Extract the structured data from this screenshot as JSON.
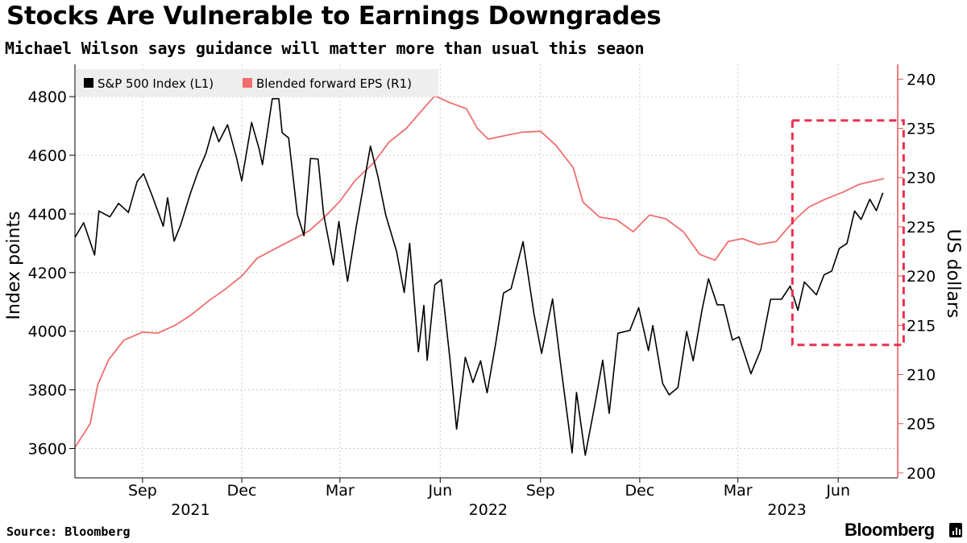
{
  "header": {
    "title": "Stocks Are Vulnerable to Earnings Downgrades",
    "subtitle": "Michael Wilson says guidance will matter more than usual this seaon"
  },
  "footer": {
    "source": "Source: Bloomberg",
    "brand": "Bloomberg"
  },
  "colors": {
    "spx": "#000000",
    "eps": "#f06e6e",
    "eps_axis": "#e15555",
    "highlight_box": "#e8304f",
    "grid": "#cccccc",
    "legend_bg": "#eeeeee"
  },
  "chart_data": {
    "type": "line",
    "x_start": "2021-07-01",
    "x_end": "2023-07-13",
    "x_ticks": [
      {
        "date": "2021-09-01",
        "label": "Sep"
      },
      {
        "date": "2021-12-01",
        "label": "Dec"
      },
      {
        "date": "2022-03-01",
        "label": "Mar"
      },
      {
        "date": "2022-06-01",
        "label": "Jun"
      },
      {
        "date": "2022-09-01",
        "label": "Sep"
      },
      {
        "date": "2022-12-01",
        "label": "Dec"
      },
      {
        "date": "2023-03-01",
        "label": "Mar"
      },
      {
        "date": "2023-06-01",
        "label": "Jun"
      }
    ],
    "year_labels": [
      {
        "date": "2021-10-15",
        "label": "2021"
      },
      {
        "date": "2022-07-15",
        "label": "2022"
      },
      {
        "date": "2023-04-15",
        "label": "2023"
      }
    ],
    "y_left": {
      "label": "Index points",
      "min": 3500,
      "max": 4910,
      "ticks": [
        3600,
        3800,
        4000,
        4200,
        4400,
        4600,
        4800
      ]
    },
    "y_right": {
      "label": "US dollars",
      "min": 199.5,
      "max": 241.5,
      "ticks": [
        200,
        205,
        210,
        215,
        220,
        225,
        230,
        235,
        240
      ]
    },
    "grid": true,
    "legend": "top-left",
    "highlight_box": {
      "x_from": "2023-04-20",
      "x_to": "2023-07-31",
      "y_from_right": 213,
      "y_to_right": 235.8
    },
    "series": [
      {
        "name": "S&P 500 Index (L1)",
        "axis": "left",
        "points": [
          [
            "2021-07-01",
            4320
          ],
          [
            "2021-07-09",
            4370
          ],
          [
            "2021-07-19",
            4260
          ],
          [
            "2021-07-23",
            4410
          ],
          [
            "2021-08-02",
            4390
          ],
          [
            "2021-08-10",
            4436
          ],
          [
            "2021-08-19",
            4405
          ],
          [
            "2021-08-27",
            4510
          ],
          [
            "2021-09-02",
            4537
          ],
          [
            "2021-09-10",
            4460
          ],
          [
            "2021-09-20",
            4358
          ],
          [
            "2021-09-24",
            4455
          ],
          [
            "2021-09-30",
            4307
          ],
          [
            "2021-10-06",
            4363
          ],
          [
            "2021-10-15",
            4471
          ],
          [
            "2021-10-22",
            4545
          ],
          [
            "2021-10-29",
            4605
          ],
          [
            "2021-11-05",
            4697
          ],
          [
            "2021-11-10",
            4646
          ],
          [
            "2021-11-18",
            4704
          ],
          [
            "2021-11-26",
            4594
          ],
          [
            "2021-12-01",
            4513
          ],
          [
            "2021-12-10",
            4712
          ],
          [
            "2021-12-17",
            4620
          ],
          [
            "2021-12-20",
            4568
          ],
          [
            "2021-12-29",
            4793
          ],
          [
            "2022-01-04",
            4793
          ],
          [
            "2022-01-07",
            4677
          ],
          [
            "2022-01-13",
            4659
          ],
          [
            "2022-01-21",
            4398
          ],
          [
            "2022-01-27",
            4326
          ],
          [
            "2022-02-02",
            4589
          ],
          [
            "2022-02-09",
            4587
          ],
          [
            "2022-02-14",
            4401
          ],
          [
            "2022-02-23",
            4226
          ],
          [
            "2022-02-28",
            4374
          ],
          [
            "2022-03-08",
            4170
          ],
          [
            "2022-03-16",
            4357
          ],
          [
            "2022-03-29",
            4631
          ],
          [
            "2022-04-05",
            4525
          ],
          [
            "2022-04-12",
            4397
          ],
          [
            "2022-04-22",
            4271
          ],
          [
            "2022-04-29",
            4132
          ],
          [
            "2022-05-04",
            4300
          ],
          [
            "2022-05-12",
            3930
          ],
          [
            "2022-05-17",
            4088
          ],
          [
            "2022-05-20",
            3901
          ],
          [
            "2022-05-27",
            4158
          ],
          [
            "2022-06-02",
            4176
          ],
          [
            "2022-06-10",
            3901
          ],
          [
            "2022-06-16",
            3666
          ],
          [
            "2022-06-24",
            3911
          ],
          [
            "2022-07-01",
            3825
          ],
          [
            "2022-07-08",
            3899
          ],
          [
            "2022-07-14",
            3790
          ],
          [
            "2022-07-22",
            3961
          ],
          [
            "2022-07-29",
            4130
          ],
          [
            "2022-08-05",
            4145
          ],
          [
            "2022-08-16",
            4305
          ],
          [
            "2022-08-26",
            4058
          ],
          [
            "2022-09-02",
            3924
          ],
          [
            "2022-09-12",
            4110
          ],
          [
            "2022-09-19",
            3900
          ],
          [
            "2022-09-30",
            3585
          ],
          [
            "2022-10-04",
            3791
          ],
          [
            "2022-10-12",
            3577
          ],
          [
            "2022-10-21",
            3752
          ],
          [
            "2022-10-28",
            3901
          ],
          [
            "2022-11-03",
            3720
          ],
          [
            "2022-11-11",
            3993
          ],
          [
            "2022-11-22",
            4003
          ],
          [
            "2022-11-30",
            4080
          ],
          [
            "2022-12-09",
            3934
          ],
          [
            "2022-12-13",
            4019
          ],
          [
            "2022-12-22",
            3822
          ],
          [
            "2022-12-28",
            3783
          ],
          [
            "2023-01-05",
            3808
          ],
          [
            "2023-01-13",
            3999
          ],
          [
            "2023-01-19",
            3899
          ],
          [
            "2023-01-27",
            4070
          ],
          [
            "2023-02-02",
            4179
          ],
          [
            "2023-02-10",
            4090
          ],
          [
            "2023-02-16",
            4090
          ],
          [
            "2023-02-24",
            3970
          ],
          [
            "2023-03-02",
            3981
          ],
          [
            "2023-03-13",
            3855
          ],
          [
            "2023-03-22",
            3937
          ],
          [
            "2023-03-31",
            4109
          ],
          [
            "2023-04-10",
            4109
          ],
          [
            "2023-04-18",
            4154
          ],
          [
            "2023-04-25",
            4071
          ],
          [
            "2023-05-01",
            4168
          ],
          [
            "2023-05-12",
            4124
          ],
          [
            "2023-05-19",
            4192
          ],
          [
            "2023-05-26",
            4205
          ],
          [
            "2023-06-02",
            4282
          ],
          [
            "2023-06-09",
            4299
          ],
          [
            "2023-06-16",
            4410
          ],
          [
            "2023-06-22",
            4381
          ],
          [
            "2023-06-30",
            4450
          ],
          [
            "2023-07-06",
            4411
          ],
          [
            "2023-07-12",
            4472
          ]
        ]
      },
      {
        "name": "Blended forward EPS (R1)",
        "axis": "right",
        "points": [
          [
            "2021-07-01",
            202.6
          ],
          [
            "2021-07-15",
            205.0
          ],
          [
            "2021-07-22",
            209.0
          ],
          [
            "2021-08-01",
            211.5
          ],
          [
            "2021-08-15",
            213.5
          ],
          [
            "2021-09-01",
            214.3
          ],
          [
            "2021-09-15",
            214.2
          ],
          [
            "2021-10-01",
            215.0
          ],
          [
            "2021-10-15",
            216.0
          ],
          [
            "2021-11-01",
            217.5
          ],
          [
            "2021-11-15",
            218.6
          ],
          [
            "2021-12-01",
            220.0
          ],
          [
            "2021-12-15",
            221.8
          ],
          [
            "2022-01-01",
            222.8
          ],
          [
            "2022-01-15",
            223.6
          ],
          [
            "2022-02-01",
            224.6
          ],
          [
            "2022-02-15",
            226.0
          ],
          [
            "2022-03-01",
            227.6
          ],
          [
            "2022-03-15",
            229.7
          ],
          [
            "2022-04-01",
            231.5
          ],
          [
            "2022-04-15",
            233.6
          ],
          [
            "2022-05-01",
            235.0
          ],
          [
            "2022-05-15",
            236.8
          ],
          [
            "2022-05-27",
            238.3
          ],
          [
            "2022-06-10",
            237.6
          ],
          [
            "2022-06-25",
            237.0
          ],
          [
            "2022-07-05",
            235.0
          ],
          [
            "2022-07-15",
            233.9
          ],
          [
            "2022-08-01",
            234.3
          ],
          [
            "2022-08-15",
            234.6
          ],
          [
            "2022-09-01",
            234.7
          ],
          [
            "2022-09-15",
            233.3
          ],
          [
            "2022-10-01",
            231.0
          ],
          [
            "2022-10-10",
            227.5
          ],
          [
            "2022-10-25",
            226.0
          ],
          [
            "2022-11-10",
            225.7
          ],
          [
            "2022-11-25",
            224.5
          ],
          [
            "2022-12-10",
            226.2
          ],
          [
            "2022-12-25",
            225.8
          ],
          [
            "2023-01-10",
            224.5
          ],
          [
            "2023-01-25",
            222.2
          ],
          [
            "2023-02-08",
            221.6
          ],
          [
            "2023-02-20",
            223.5
          ],
          [
            "2023-03-05",
            223.8
          ],
          [
            "2023-03-20",
            223.2
          ],
          [
            "2023-04-05",
            223.5
          ],
          [
            "2023-04-15",
            224.8
          ],
          [
            "2023-04-25",
            226.0
          ],
          [
            "2023-05-05",
            227.0
          ],
          [
            "2023-05-20",
            227.8
          ],
          [
            "2023-06-05",
            228.5
          ],
          [
            "2023-06-20",
            229.3
          ],
          [
            "2023-07-13",
            229.9
          ]
        ]
      }
    ]
  }
}
